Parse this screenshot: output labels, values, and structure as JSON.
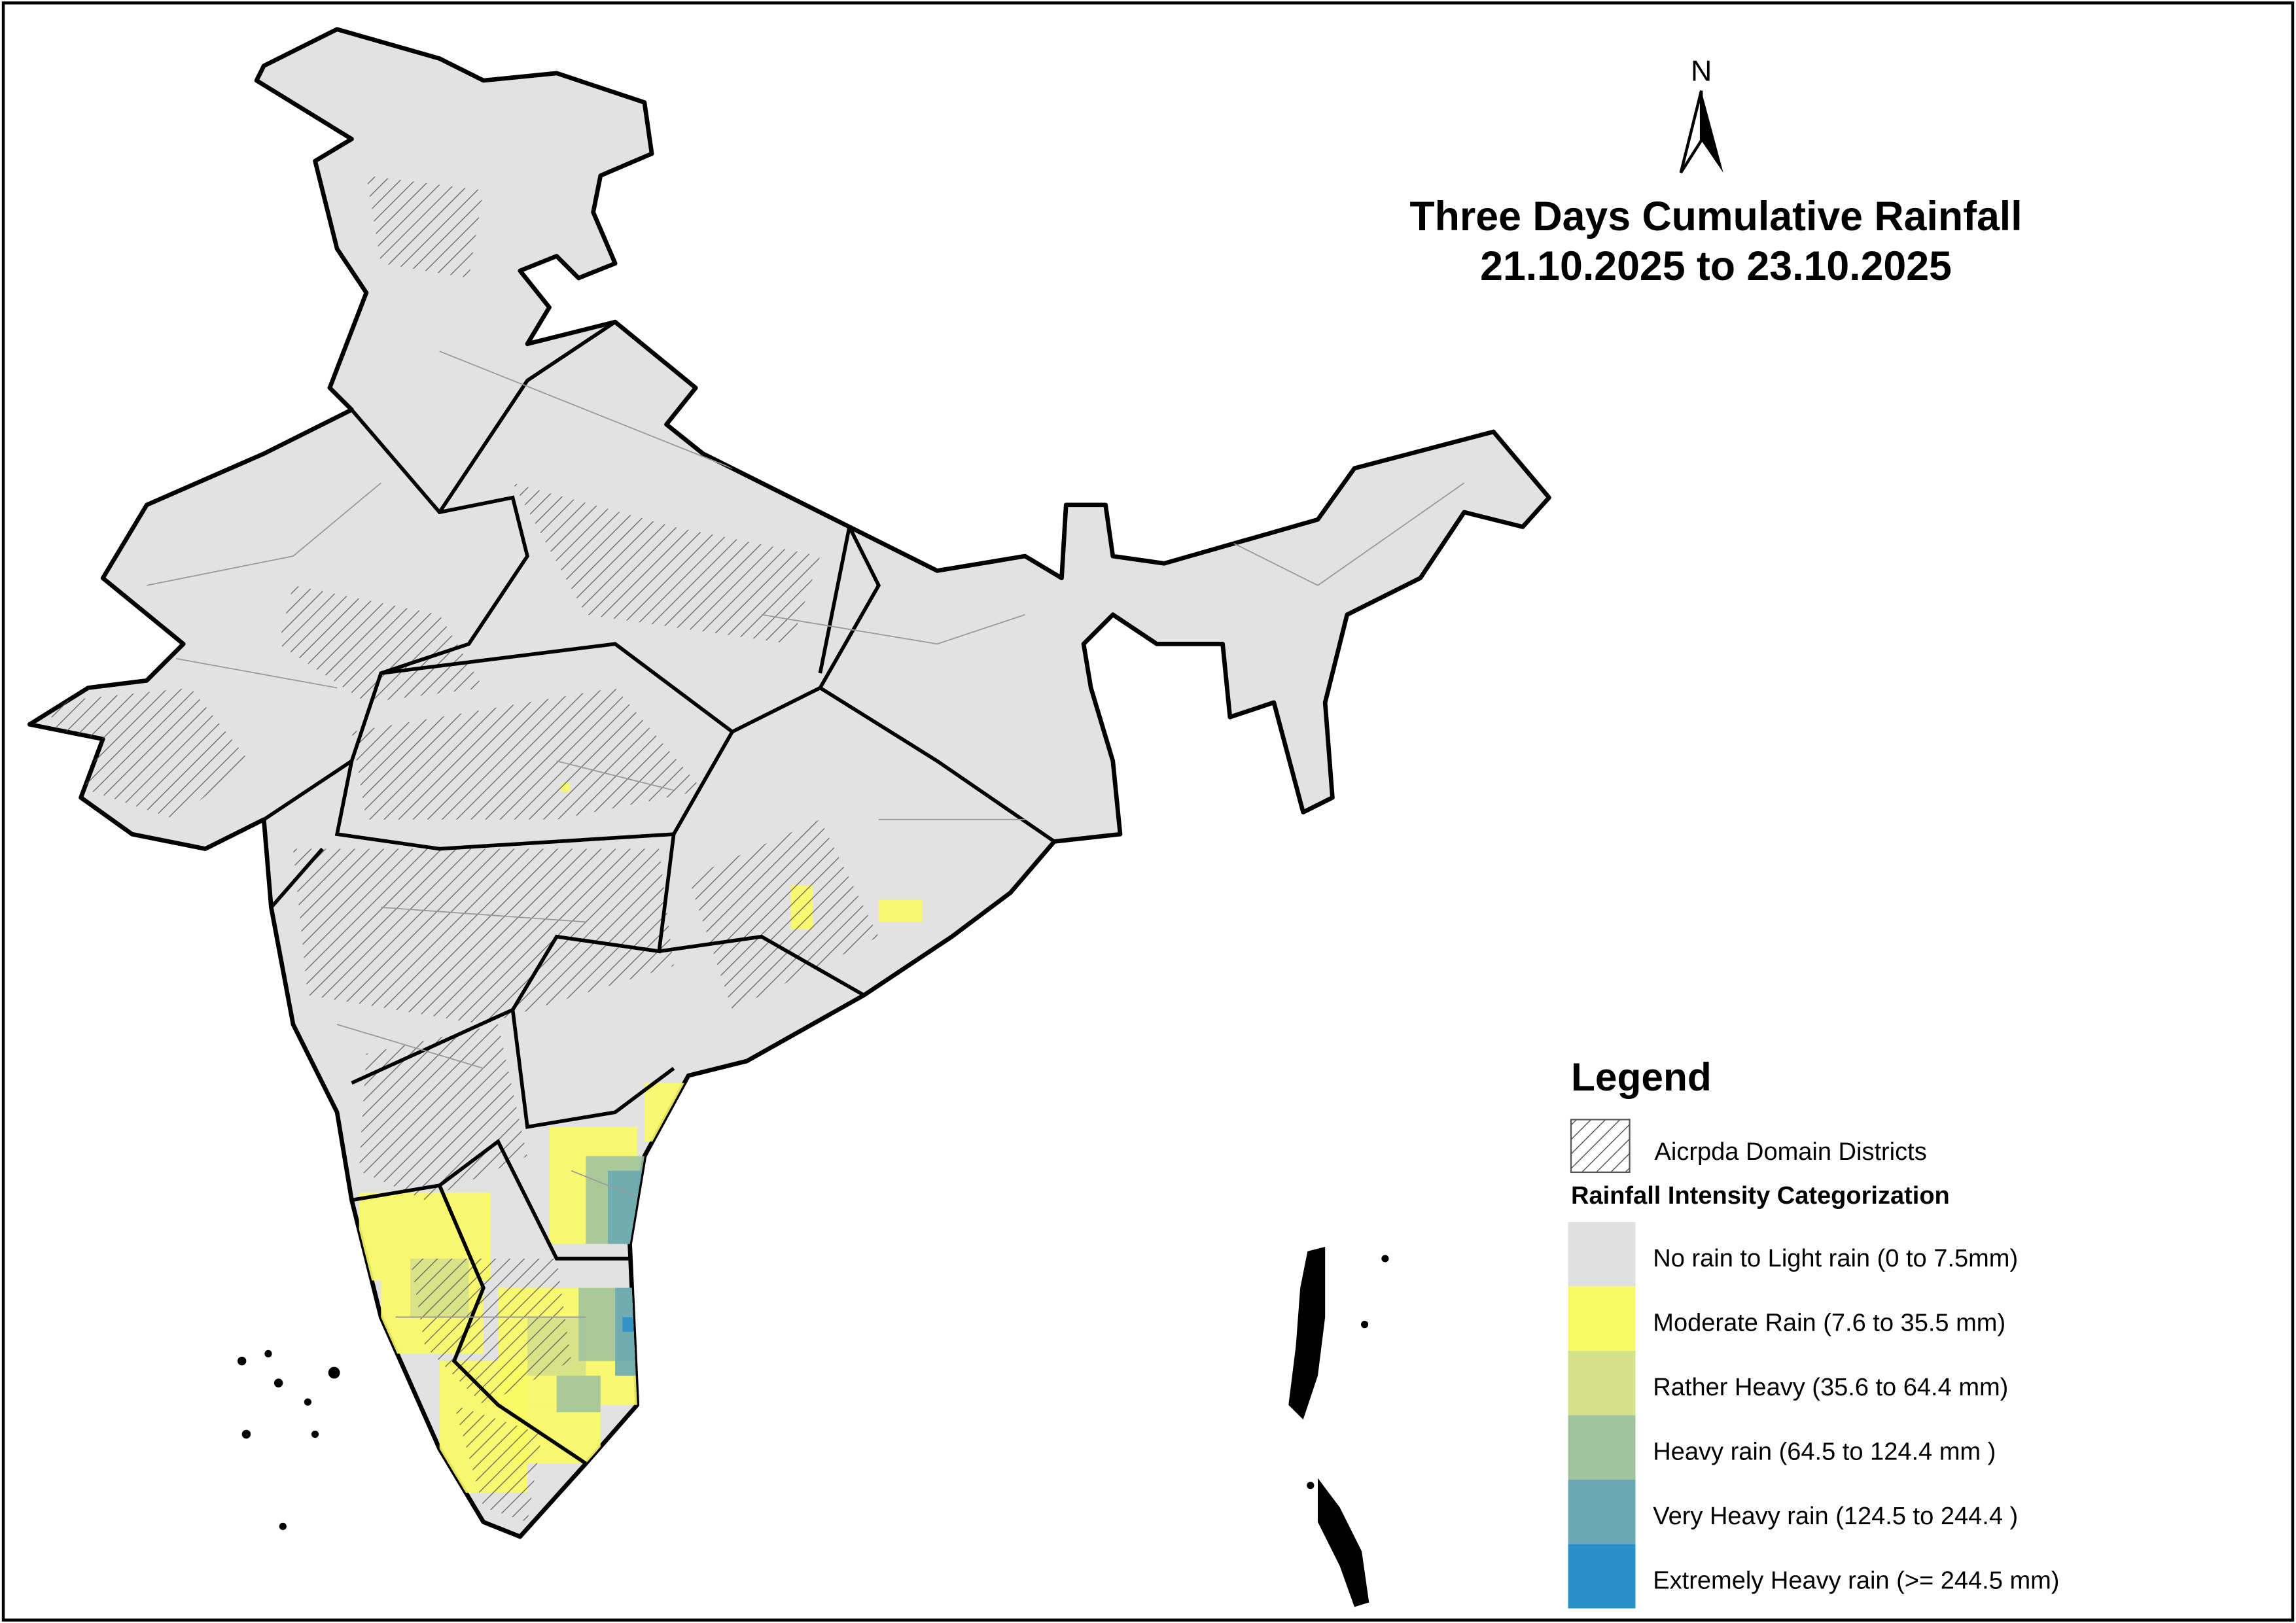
{
  "title": {
    "line1": "Three Days Cumulative Rainfall",
    "line2": "21.10.2025 to 23.10.2025"
  },
  "north_label": "N",
  "legend": {
    "title": "Legend",
    "domain_label": "Aicrpda Domain Districts",
    "subtitle": "Rainfall Intensity Categorization",
    "items": [
      {
        "label": "No rain to Light rain (0 to 7.5mm)",
        "color": "#e0e0e0"
      },
      {
        "label": "Moderate Rain (7.6 to 35.5 mm)",
        "color": "#fafa64"
      },
      {
        "label": "Rather Heavy (35.6 to 64.4 mm)",
        "color": "#d4e08a"
      },
      {
        "label": "Heavy rain (64.5 to 124.4 mm )",
        "color": "#a0c49c"
      },
      {
        "label": "Very Heavy rain (124.5 to 244.4 )",
        "color": "#6aa8b4"
      },
      {
        "label": "Extremely Heavy rain  (>= 244.5 mm)",
        "color": "#2a90c8"
      }
    ]
  }
}
